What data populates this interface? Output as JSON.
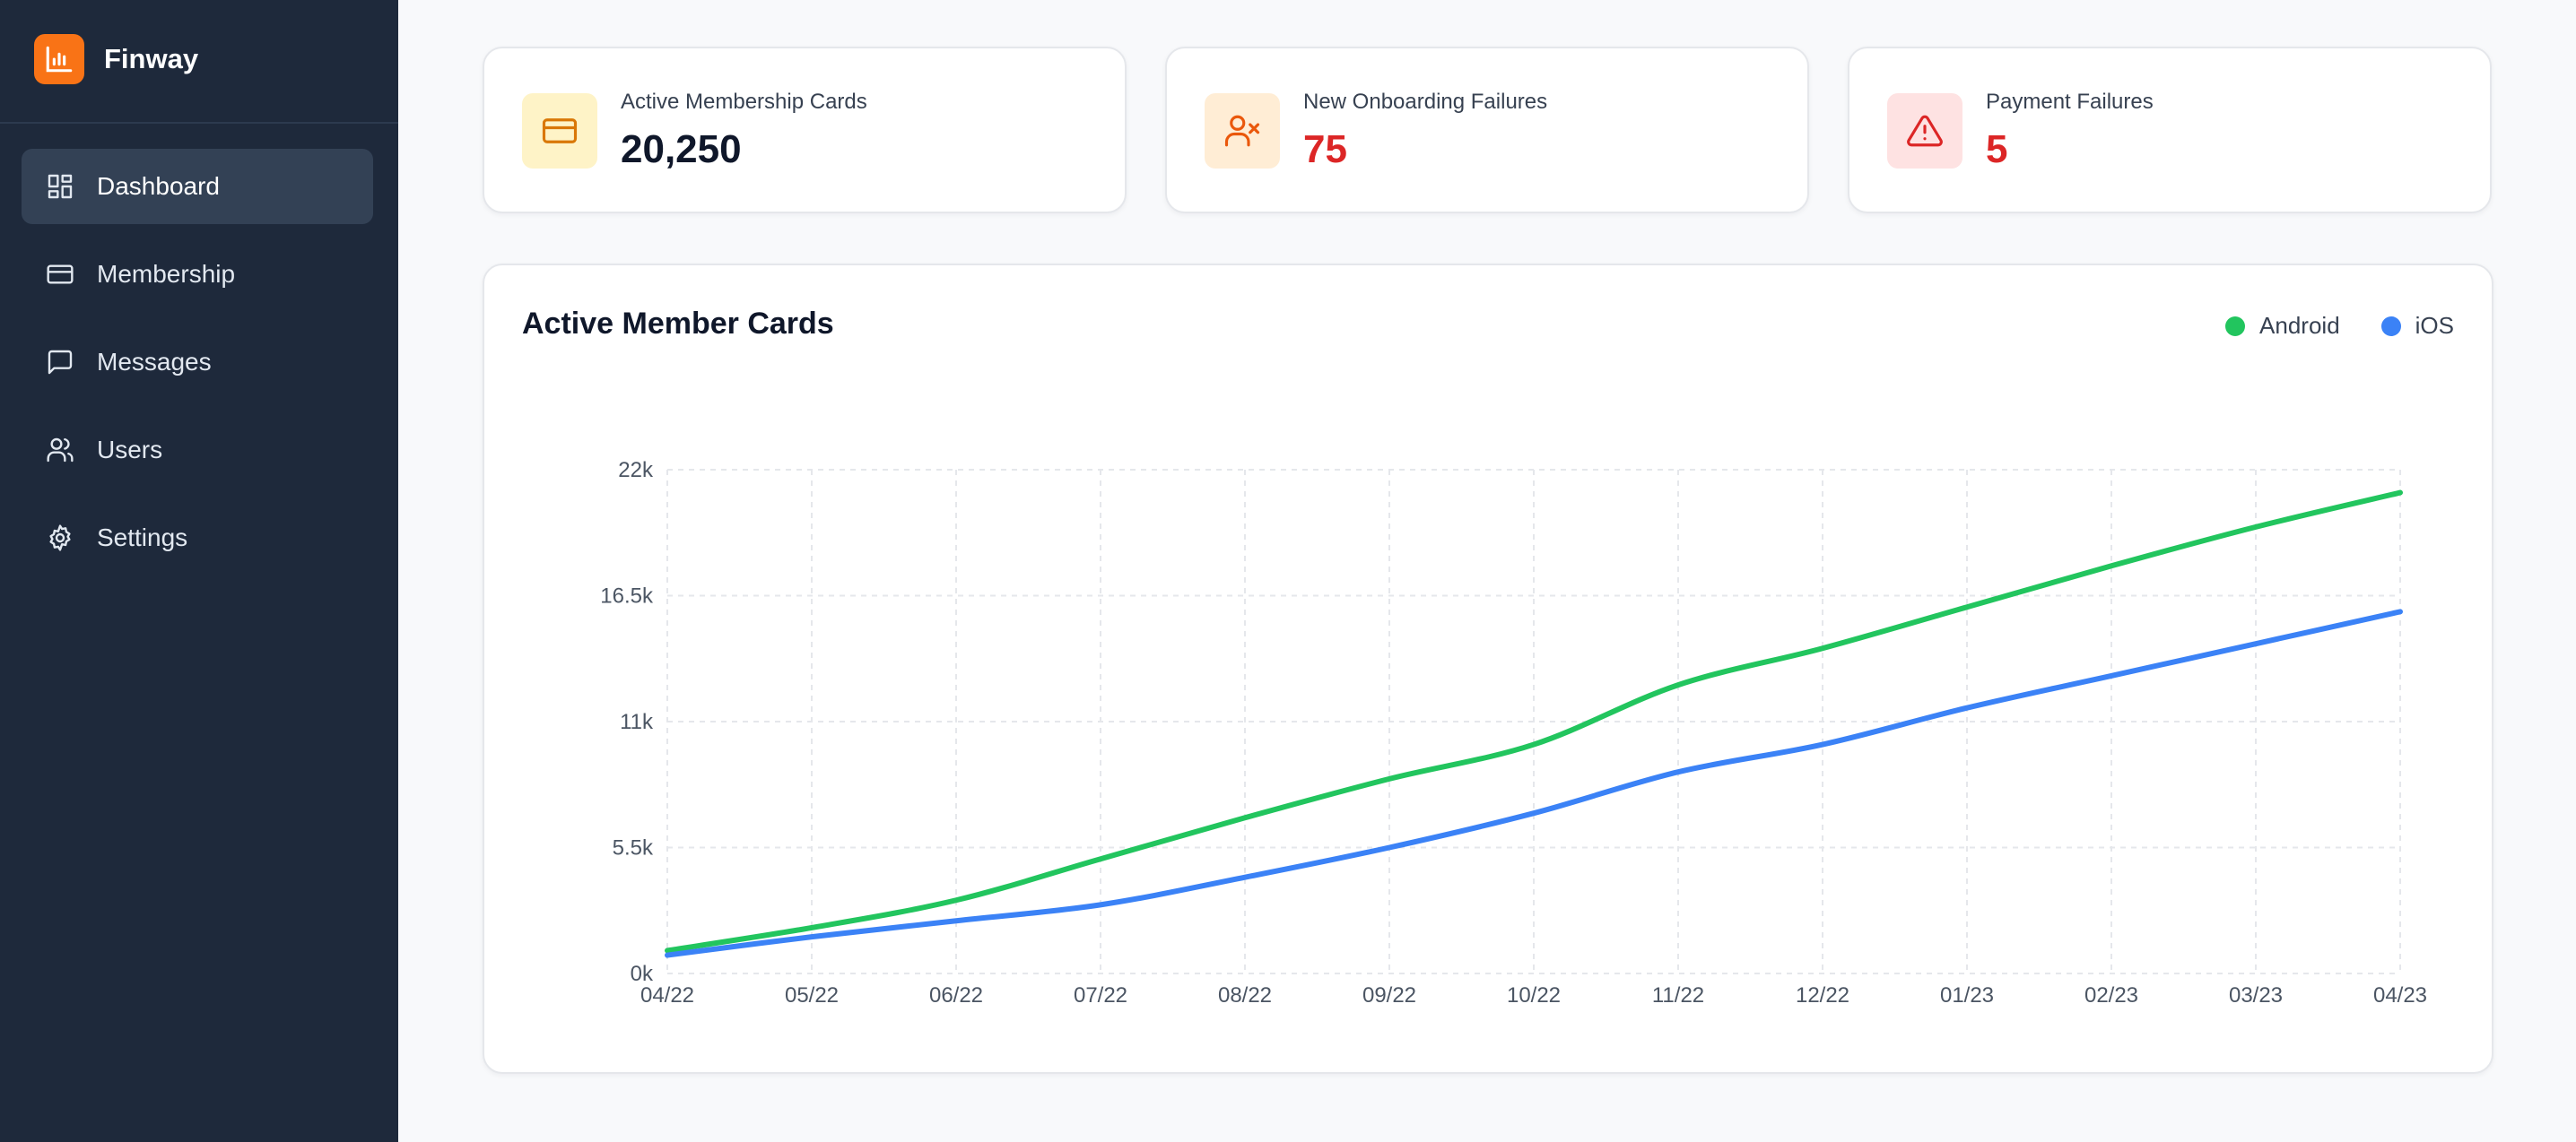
{
  "brand": {
    "name": "Finway",
    "icon": "bar-chart-icon",
    "color": "#f97316"
  },
  "sidebar": {
    "items": [
      {
        "label": "Dashboard",
        "icon": "dashboard-icon",
        "active": true
      },
      {
        "label": "Membership",
        "icon": "credit-card-icon",
        "active": false
      },
      {
        "label": "Messages",
        "icon": "message-icon",
        "active": false
      },
      {
        "label": "Users",
        "icon": "users-icon",
        "active": false
      },
      {
        "label": "Settings",
        "icon": "gear-icon",
        "active": false
      }
    ]
  },
  "stats": [
    {
      "label": "Active Membership Cards",
      "value": "20,250",
      "icon": "credit-card-icon",
      "icon_bg": "#fef3c7",
      "icon_color": "#d97706",
      "value_color": "#0f172a"
    },
    {
      "label": "New Onboarding Failures",
      "value": "75",
      "icon": "user-x-icon",
      "icon_bg": "#ffedd5",
      "icon_color": "#ea580c",
      "value_color": "#dc2626"
    },
    {
      "label": "Payment Failures",
      "value": "5",
      "icon": "alert-triangle-icon",
      "icon_bg": "#fee2e2",
      "icon_color": "#dc2626",
      "value_color": "#dc2626"
    }
  ],
  "chart": {
    "title": "Active Member Cards"
  },
  "chart_data": {
    "type": "line",
    "title": "Active Member Cards",
    "xlabel": "",
    "ylabel": "",
    "categories": [
      "04/22",
      "05/22",
      "06/22",
      "07/22",
      "08/22",
      "09/22",
      "10/22",
      "11/22",
      "12/22",
      "01/23",
      "02/23",
      "03/23",
      "04/23"
    ],
    "y_ticks": [
      "0k",
      "5.5k",
      "11k",
      "16.5k",
      "22k"
    ],
    "ylim": [
      0,
      22000
    ],
    "grid": true,
    "legend": "top-right",
    "series": [
      {
        "name": "Android",
        "color": "#22c55e",
        "values": [
          1000,
          2000,
          3200,
          5000,
          6800,
          8500,
          10000,
          12600,
          14200,
          16000,
          17800,
          19500,
          21000
        ]
      },
      {
        "name": "iOS",
        "color": "#3b82f6",
        "values": [
          800,
          1600,
          2300,
          3000,
          4200,
          5500,
          7000,
          8800,
          10000,
          11600,
          13000,
          14400,
          15800
        ]
      }
    ]
  }
}
